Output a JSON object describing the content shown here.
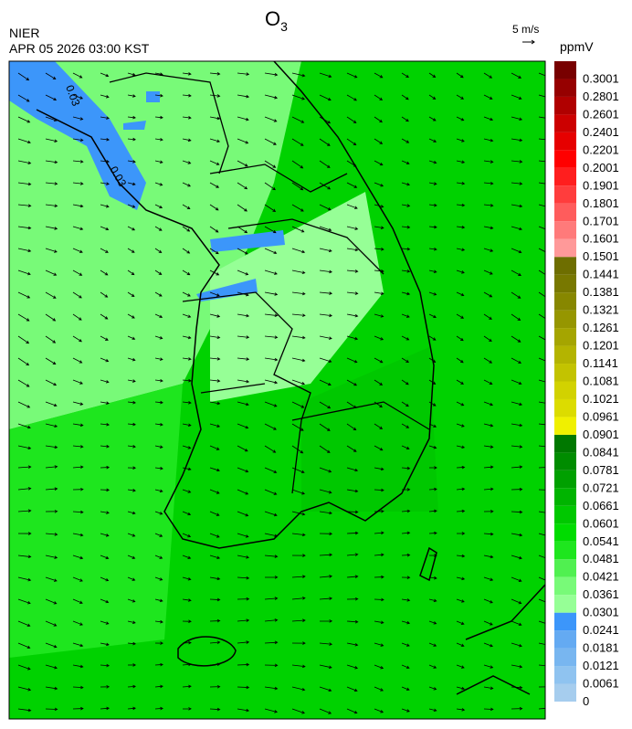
{
  "header": {
    "agency": "NIER",
    "time": "APR 05 2026 03:00 KST",
    "title": "O",
    "title_sub": "3"
  },
  "vector_key": "5 m/s",
  "contour_labels": [
    "0.03",
    "0.03"
  ],
  "colorbar": {
    "unit": "ppmV",
    "labels": [
      "0",
      "0.0061",
      "0.0121",
      "0.0181",
      "0.0241",
      "0.0301",
      "0.0361",
      "0.0421",
      "0.0481",
      "0.0541",
      "0.0601",
      "0.0661",
      "0.0721",
      "0.0781",
      "0.0841",
      "0.0901",
      "0.0961",
      "0.1021",
      "0.1081",
      "0.1141",
      "0.1201",
      "0.1261",
      "0.1321",
      "0.1381",
      "0.1441",
      "0.1501",
      "0.1601",
      "0.1701",
      "0.1801",
      "0.1901",
      "0.2001",
      "0.2201",
      "0.2401",
      "0.2601",
      "0.2801",
      "0.3001"
    ],
    "colors": [
      "#a6cdee",
      "#8fc3f0",
      "#78b6f0",
      "#64aaf2",
      "#3c96fa",
      "#96ff96",
      "#78fa78",
      "#50f050",
      "#1ee61e",
      "#00dc00",
      "#00c800",
      "#00b400",
      "#00a000",
      "#008c00",
      "#007800",
      "#f0f000",
      "#dcdc00",
      "#d2d200",
      "#c3c300",
      "#b4b400",
      "#a5a500",
      "#969600",
      "#878700",
      "#787800",
      "#6e6e00",
      "#ff9999",
      "#ff7a7a",
      "#ff5c5c",
      "#ff3d3d",
      "#ff1e1e",
      "#ff0000",
      "#e60000",
      "#cc0000",
      "#b00000",
      "#960000",
      "#780000"
    ]
  }
}
